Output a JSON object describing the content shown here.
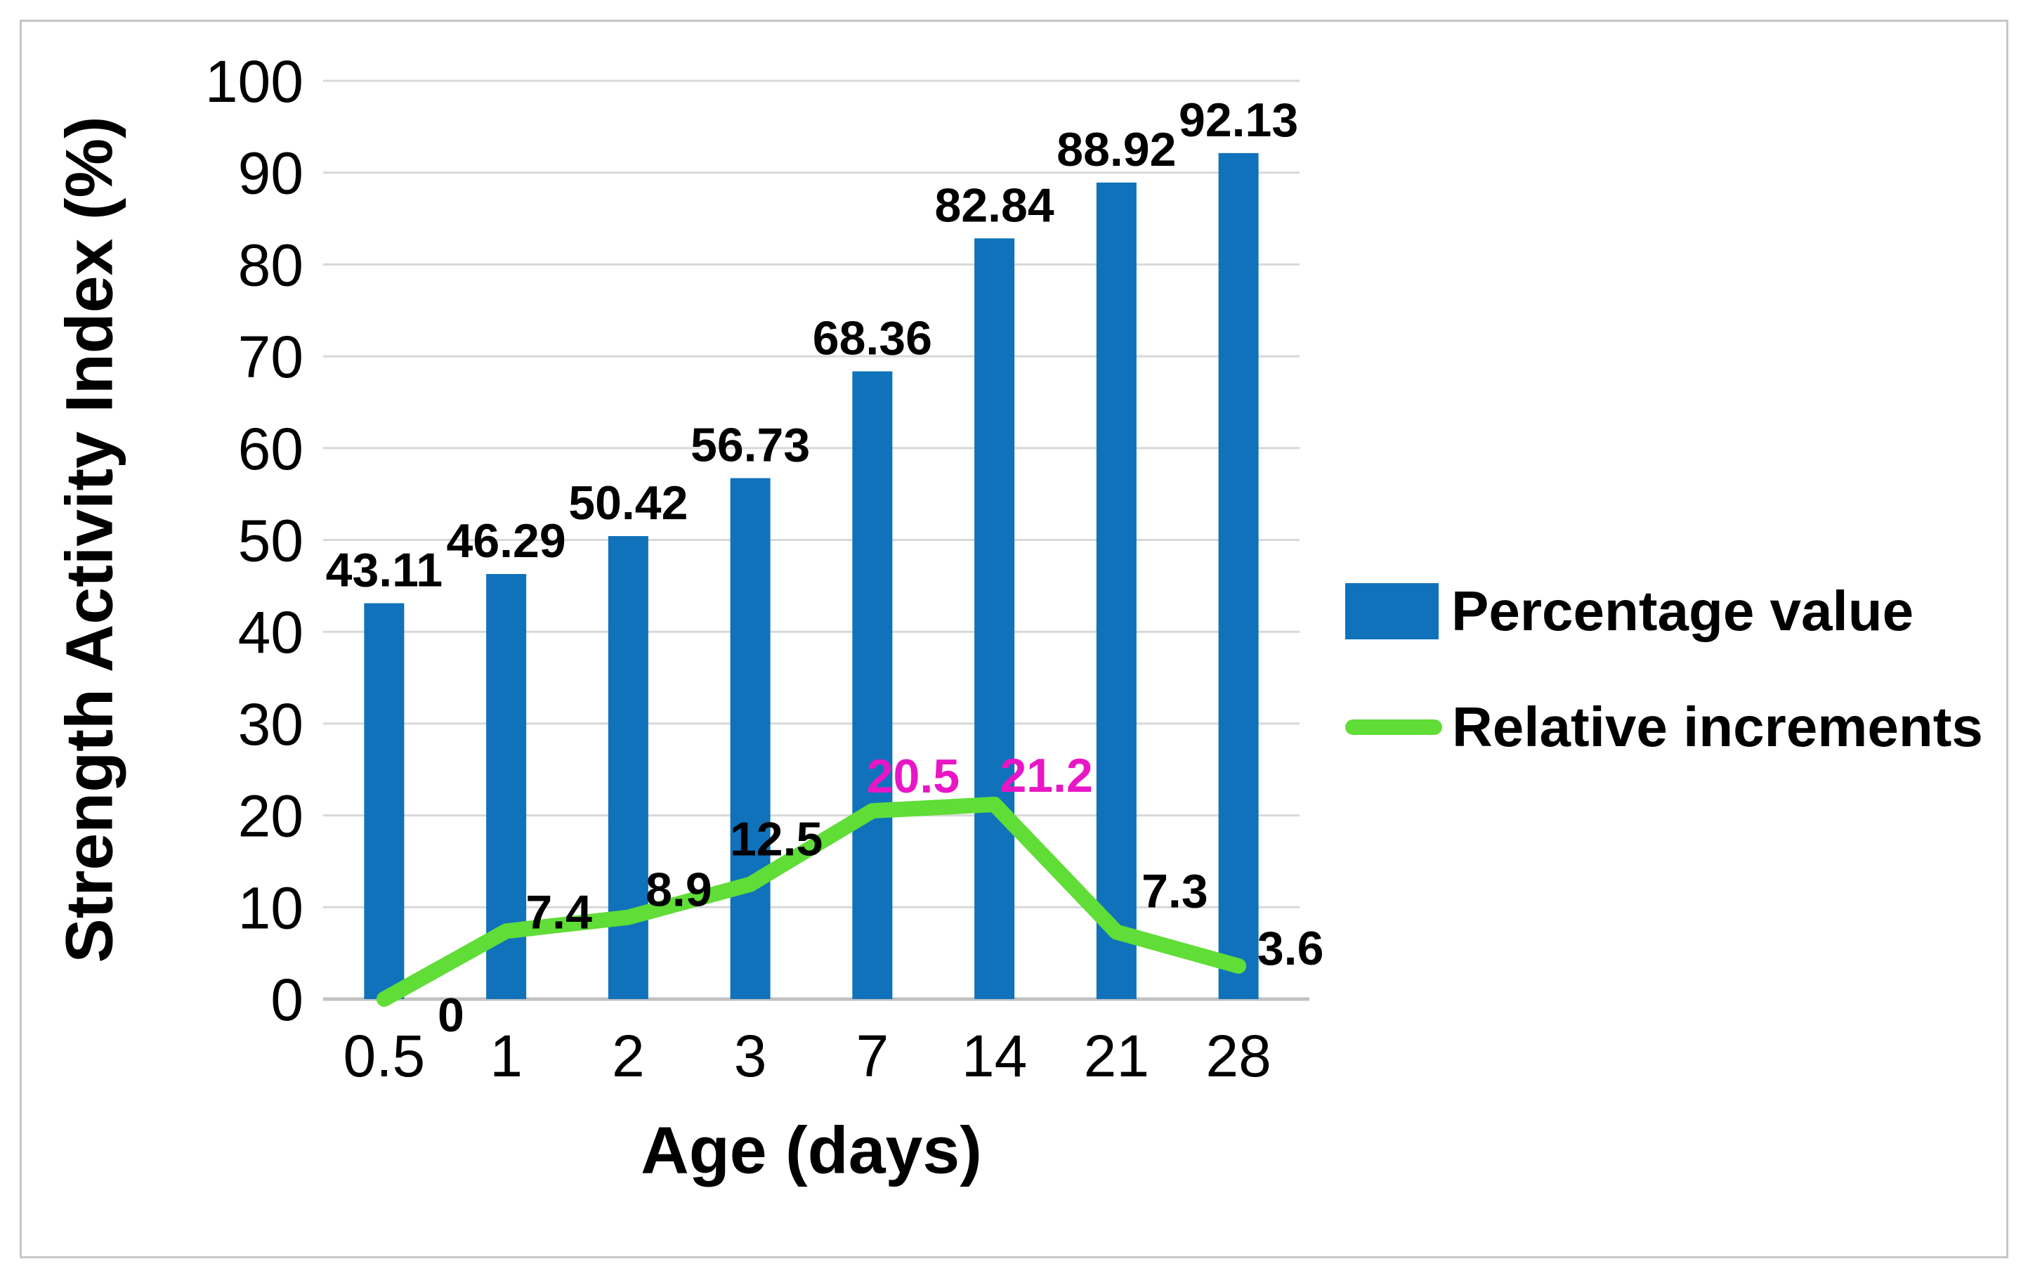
{
  "chart_data": {
    "type": "bar",
    "title": "",
    "xlabel": "Age (days)",
    "ylabel": "Strength Activity Index (%)",
    "categories": [
      "0.5",
      "1",
      "2",
      "3",
      "7",
      "14",
      "21",
      "28"
    ],
    "ylim": [
      0,
      100
    ],
    "ytick_step": 10,
    "yticks": [
      "0",
      "10",
      "20",
      "30",
      "40",
      "50",
      "60",
      "70",
      "80",
      "90",
      "100"
    ],
    "grid": true,
    "legend_position": "right",
    "series": [
      {
        "name": "Percentage value",
        "type": "bar",
        "color": "#1072BA",
        "values": [
          43.11,
          46.29,
          50.42,
          56.73,
          68.36,
          82.84,
          88.92,
          92.13
        ],
        "labels": [
          "43.11",
          "46.29",
          "50.42",
          "56.73",
          "68.36",
          "82.84",
          "88.92",
          "92.13"
        ],
        "label_color": "#000000"
      },
      {
        "name": "Relative increments",
        "type": "line",
        "color": "#60DD37",
        "values": [
          0,
          7.4,
          8.9,
          12.5,
          20.5,
          21.2,
          7.3,
          3.6
        ],
        "labels": [
          "0",
          "7.4",
          "8.9",
          "12.5",
          "20.5",
          "21.2",
          "7.3",
          "3.6"
        ],
        "label_colors": [
          "#000000",
          "#000000",
          "#000000",
          "#000000",
          "#E916C6",
          "#E916C6",
          "#000000",
          "#000000"
        ]
      }
    ],
    "colors": {
      "grid": "#D8D8D8",
      "axis": "#C2C2C2",
      "text": "#000000"
    }
  }
}
